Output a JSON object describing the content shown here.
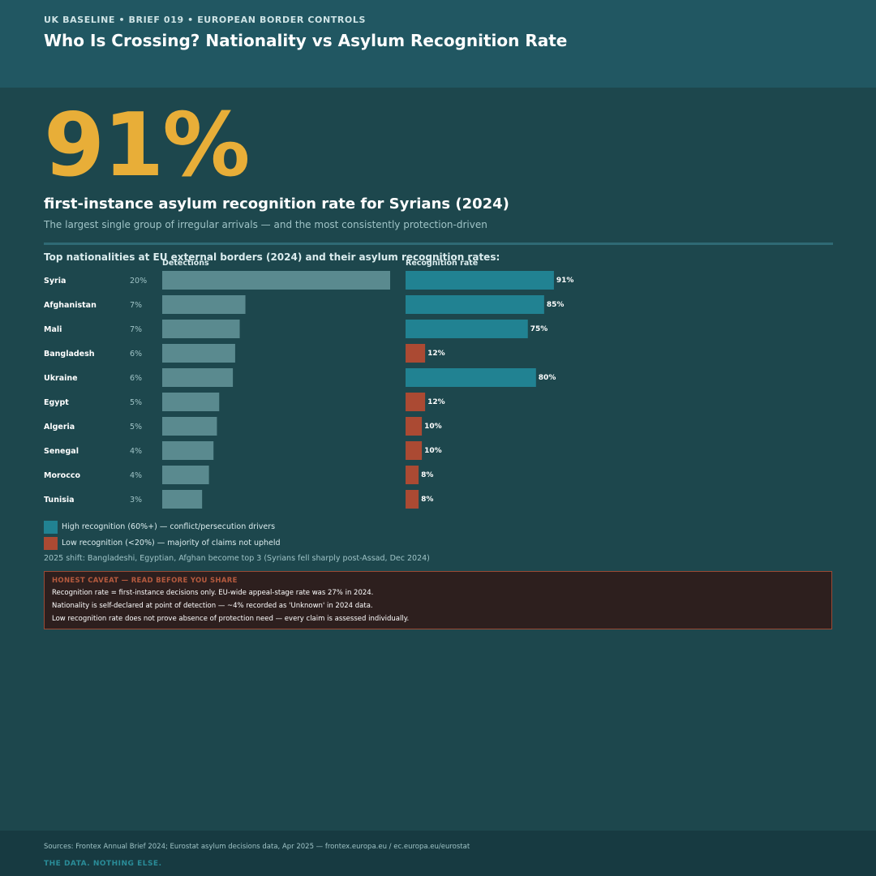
{
  "header": {
    "kicker": "UK BASELINE  •  BRIEF 019  •  EUROPEAN BORDER CONTROLS",
    "title": "Who Is Crossing? Nationality vs Asylum Recognition Rate"
  },
  "hero": {
    "big_number": "91%",
    "headline": "first-instance asylum recognition rate for Syrians (2024)",
    "subhead": "The largest single group of irregular arrivals — and the most consistently protection-driven"
  },
  "chart_data": {
    "type": "bar",
    "title": "Top nationalities at EU external borders (2024) and their asylum recognition rates:",
    "categories": [
      "Syria",
      "Afghanistan",
      "Mali",
      "Bangladesh",
      "Ukraine",
      "Egypt",
      "Algeria",
      "Senegal",
      "Morocco",
      "Tunisia"
    ],
    "series": [
      {
        "name": "Detections",
        "values": [
          20,
          7,
          7,
          6,
          6,
          5,
          5,
          4,
          4,
          3
        ],
        "labels": [
          "20%",
          "7%",
          "7%",
          "6%",
          "6%",
          "5%",
          "5%",
          "4%",
          "4%",
          "3%"
        ]
      },
      {
        "name": "Recognition rate",
        "values": [
          91,
          85,
          75,
          12,
          80,
          12,
          10,
          10,
          8,
          8
        ],
        "labels": [
          "91%",
          "85%",
          "75%",
          "12%",
          "80%",
          "12%",
          "10%",
          "10%",
          "8%",
          "8%"
        ]
      }
    ],
    "detection_bar_values": [
      20,
      7.3,
      6.8,
      6.4,
      6.2,
      5,
      4.8,
      4.5,
      4.1,
      3.5
    ],
    "recognition_levels": [
      "high",
      "high",
      "high",
      "low",
      "high",
      "low",
      "low",
      "low",
      "low",
      "low"
    ],
    "colors": {
      "detections": "#5a8a8f",
      "high": "#218292",
      "low": "#ab4a33"
    }
  },
  "legend": {
    "high": {
      "label": "High recognition (60%+) — conflict/persecution drivers",
      "color": "#218292"
    },
    "low": {
      "label": "Low recognition (<20%) — majority of claims not upheld",
      "color": "#ab4a33"
    }
  },
  "shift_note": "2025 shift: Bangladeshi, Egyptian, Afghan become top 3 (Syrians fell sharply post-Assad, Dec 2024)",
  "caveat": {
    "title": "HONEST CAVEAT — READ BEFORE YOU SHARE",
    "lines": [
      "Recognition rate = first-instance decisions only. EU-wide appeal-stage rate was 27% in 2024.",
      "Nationality is self-declared at point of detection — ~4% recorded as 'Unknown' in 2024 data.",
      "Low recognition rate does not prove absence of protection need — every claim is assessed individually."
    ]
  },
  "footer": {
    "sources": "Sources: Frontex Annual Brief 2024; Eurostat asylum decisions data, Apr 2025 — frontex.europa.eu / ec.europa.eu/eurostat",
    "tagline": "THE DATA. NOTHING ELSE."
  }
}
